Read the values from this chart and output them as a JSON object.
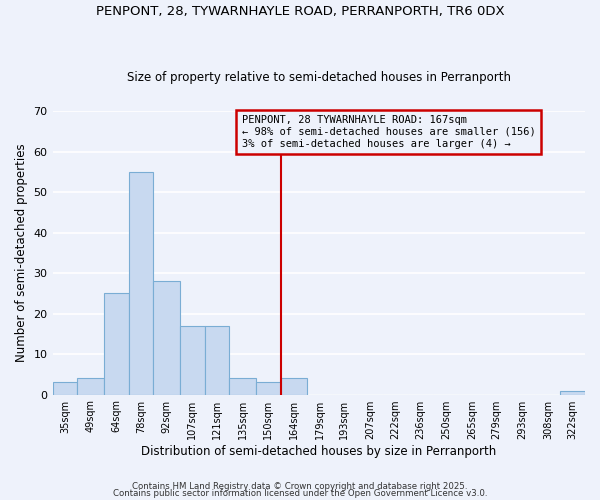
{
  "title": "PENPONT, 28, TYWARNHAYLE ROAD, PERRANPORTH, TR6 0DX",
  "subtitle": "Size of property relative to semi-detached houses in Perranporth",
  "xlabel": "Distribution of semi-detached houses by size in Perranporth",
  "ylabel": "Number of semi-detached properties",
  "bin_edges": [
    35,
    49,
    64,
    78,
    92,
    107,
    121,
    135,
    150,
    164,
    179,
    193,
    207,
    222,
    236,
    250,
    265,
    279,
    293,
    308,
    322,
    336
  ],
  "bar_heights": [
    3,
    4,
    25,
    55,
    28,
    17,
    17,
    4,
    3,
    4,
    0,
    0,
    0,
    0,
    0,
    0,
    0,
    0,
    0,
    0,
    1
  ],
  "bar_color": "#c8d9f0",
  "bar_edge_color": "#7aadd4",
  "vline_x": 164,
  "vline_color": "#cc0000",
  "ylim": [
    0,
    70
  ],
  "yticks": [
    0,
    10,
    20,
    30,
    40,
    50,
    60,
    70
  ],
  "annotation_title": "PENPONT, 28 TYWARNHAYLE ROAD: 167sqm",
  "annotation_line2": "← 98% of semi-detached houses are smaller (156)",
  "annotation_line3": "3% of semi-detached houses are larger (4) →",
  "annotation_box_color": "#cc0000",
  "footer1": "Contains HM Land Registry data © Crown copyright and database right 2025.",
  "footer2": "Contains public sector information licensed under the Open Government Licence v3.0.",
  "bg_color": "#eef2fb",
  "grid_color": "#ffffff",
  "tick_labels": [
    "35sqm",
    "49sqm",
    "64sqm",
    "78sqm",
    "92sqm",
    "107sqm",
    "121sqm",
    "135sqm",
    "150sqm",
    "164sqm",
    "179sqm",
    "193sqm",
    "207sqm",
    "222sqm",
    "236sqm",
    "250sqm",
    "265sqm",
    "279sqm",
    "293sqm",
    "308sqm",
    "322sqm"
  ]
}
